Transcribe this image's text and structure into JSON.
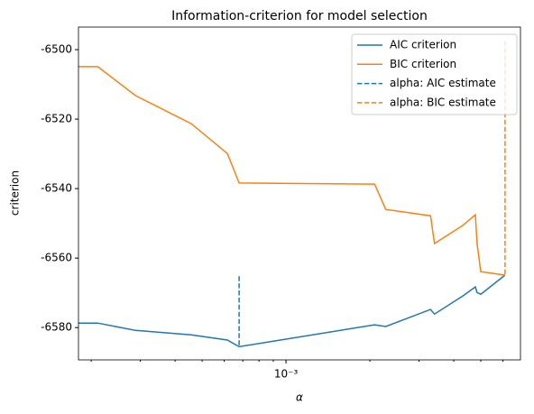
{
  "chart_data": {
    "type": "line",
    "title": "Information-criterion for model selection",
    "x_label": "α",
    "y_label": "criterion",
    "xscale": "log",
    "xlim": [
      0.00018,
      0.00694
    ],
    "ylim": [
      -6589.3,
      -6493.5
    ],
    "xticks": [
      {
        "value": 0.001,
        "label": "10⁻³"
      }
    ],
    "xminorticks": [
      0.0002,
      0.0003,
      0.0004,
      0.0005,
      0.0006,
      0.0007,
      0.0008,
      0.0009,
      0.002,
      0.003,
      0.004,
      0.005,
      0.006
    ],
    "yticks": [
      -6580,
      -6560,
      -6540,
      -6520,
      -6500
    ],
    "legend": "upper right",
    "series": [
      {
        "name": "AIC criterion",
        "color": "#1f77b4",
        "dash": false,
        "x": [
          0.00018,
          0.000211,
          0.000288,
          0.000457,
          0.000616,
          0.000679,
          0.00208,
          0.00228,
          0.0033,
          0.00341,
          0.00431,
          0.00478,
          0.00485,
          0.005,
          0.00611
        ],
        "values": [
          -6578.7,
          -6578.7,
          -6580.8,
          -6582.1,
          -6583.6,
          -6585.5,
          -6579.2,
          -6579.7,
          -6574.8,
          -6576.1,
          -6570.9,
          -6568.3,
          -6569.9,
          -6570.4,
          -6564.9
        ]
      },
      {
        "name": "BIC criterion",
        "color": "#ff7f0e",
        "dash": false,
        "x": [
          0.00018,
          0.000211,
          0.000288,
          0.000457,
          0.000616,
          0.000679,
          0.00208,
          0.00228,
          0.0033,
          0.00341,
          0.00431,
          0.00478,
          0.00485,
          0.005,
          0.00611
        ],
        "values": [
          -6504.9,
          -6504.9,
          -6513.2,
          -6521.3,
          -6529.9,
          -6538.4,
          -6538.7,
          -6546.0,
          -6547.8,
          -6555.8,
          -6550.6,
          -6547.5,
          -6555.8,
          -6563.9,
          -6564.9
        ]
      },
      {
        "name": "alpha: AIC estimate",
        "color": "#1f77b4",
        "dash": true,
        "x": [
          0.000679,
          0.000679
        ],
        "values": [
          -6565.2,
          -6585.5
        ]
      },
      {
        "name": "alpha: BIC estimate",
        "color": "#ff7f0e",
        "dash": true,
        "x": [
          0.00611,
          0.00611
        ],
        "values": [
          -6497.6,
          -6564.9
        ]
      }
    ]
  }
}
